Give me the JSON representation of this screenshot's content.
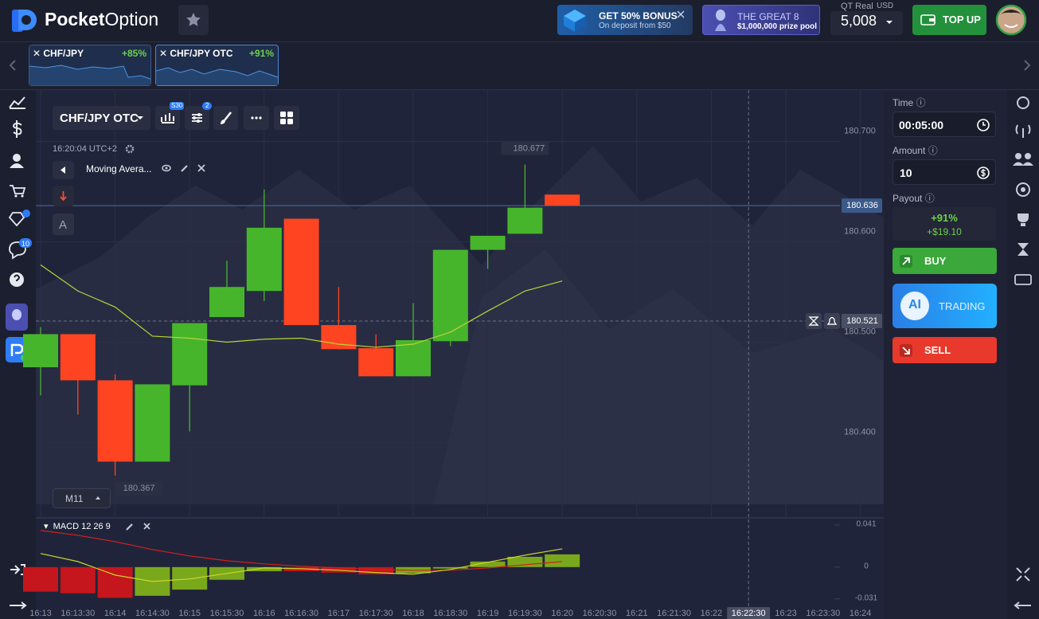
{
  "header": {
    "logo_bold": "Pocket",
    "logo_light": "Option",
    "bonus_title": "GET 50% BONUS",
    "bonus_sub": "On deposit from $50",
    "promo_title": "THE GREAT 8",
    "promo_sub": "$1,000,000 prize pool",
    "account_type": "QT Real",
    "currency": "USD",
    "balance": "5,008",
    "top_up": "TOP UP"
  },
  "tabs": [
    {
      "asset": "CHF/JPY",
      "payout": "+85%"
    },
    {
      "asset": "CHF/JPY OTC",
      "payout": "+91%"
    }
  ],
  "sidebar": {
    "notifications": "10"
  },
  "chart_data": {
    "type": "candlestick",
    "title": "CHF/JPY OTC",
    "timeframe_badge": "S30",
    "indicator_badge": "2",
    "clock": "16:20:04 UTC+2",
    "indicator_name": "Moving Avera...",
    "text_tool": "A",
    "timeframe": "M11",
    "x": [
      "16:13",
      "16:13:30",
      "16:14",
      "16:14:30",
      "16:15",
      "16:15:30",
      "16:16",
      "16:16:30",
      "16:17",
      "16:17:30",
      "16:18",
      "16:18:30",
      "16:19",
      "16:19:30",
      "16:20",
      "16:20:30",
      "16:21",
      "16:21:30",
      "16:22",
      "16:22:30",
      "16:23",
      "16:23:30",
      "16:24"
    ],
    "open": [
      180.475,
      180.508,
      180.462,
      180.381,
      180.457,
      180.525,
      180.551,
      180.623,
      180.517,
      180.494,
      180.466,
      180.501,
      180.592,
      180.608,
      180.647,
      null,
      null,
      null,
      null,
      null,
      null,
      null,
      null
    ],
    "high": [
      180.515,
      180.508,
      180.468,
      180.458,
      180.519,
      180.581,
      180.652,
      180.623,
      180.555,
      180.508,
      180.539,
      180.592,
      180.606,
      180.677,
      180.647,
      null,
      null,
      null,
      null,
      null,
      null,
      null,
      null
    ],
    "low": [
      180.447,
      180.428,
      180.367,
      180.381,
      180.411,
      180.525,
      180.541,
      180.517,
      180.493,
      180.466,
      180.466,
      180.496,
      180.573,
      180.608,
      180.636,
      null,
      null,
      null,
      null,
      null,
      null,
      null,
      null
    ],
    "close": [
      180.508,
      180.462,
      180.381,
      180.458,
      180.519,
      180.555,
      180.614,
      180.517,
      180.493,
      180.466,
      180.502,
      180.592,
      180.606,
      180.634,
      180.636,
      null,
      null,
      null,
      null,
      null,
      null,
      null,
      null
    ],
    "rising_color": "#47b52c",
    "falling_color": "#ff4422",
    "ylim": [
      180.325,
      180.752
    ],
    "yticks": [
      {
        "value": 180.7,
        "label": "180.700"
      },
      {
        "value": 180.6,
        "label": "180.600"
      },
      {
        "value": 180.5,
        "label": "180.500"
      },
      {
        "value": 180.4,
        "label": "180.400"
      }
    ],
    "moving_average": {
      "color": "#b9d437",
      "values": [
        180.577,
        180.551,
        180.535,
        180.506,
        180.504,
        180.5,
        180.503,
        180.504,
        180.498,
        180.495,
        180.498,
        180.51,
        180.531,
        180.551,
        180.561,
        null,
        null,
        null,
        null,
        null,
        null,
        null,
        null
      ]
    },
    "current_price": 180.636,
    "crosshair_price": 180.521,
    "macd": {
      "name": "MACD 12 26 9",
      "ylim": [
        -0.039,
        0.0465
      ],
      "yticks": [
        0.041,
        0,
        -0.031
      ],
      "rising_color": "#7aa81c",
      "falling_color": "#c4161c",
      "histogram": [
        -0.024,
        -0.0256,
        -0.03,
        -0.028,
        -0.022,
        -0.0124,
        -0.004,
        -0.004,
        -0.0054,
        -0.007,
        -0.006,
        -0.0015,
        0.0054,
        0.01,
        0.0124,
        null,
        null,
        null,
        null,
        null,
        null,
        null,
        null
      ],
      "macd_line": {
        "color": "#cbd52a",
        "values": [
          0.0132,
          0.0054,
          -0.0078,
          -0.014,
          -0.0116,
          -0.0062,
          -0.0008,
          -0.0016,
          -0.0031,
          -0.0054,
          -0.007,
          -0.0023,
          0.0047,
          0.0116,
          0.0178,
          null,
          null,
          null,
          null,
          null,
          null,
          null,
          null
        ]
      },
      "signal_line": {
        "color": "#d42020",
        "values": [
          0.0357,
          0.031,
          0.0248,
          0.0171,
          0.0109,
          0.0062,
          0.0031,
          0.0008,
          -0.0008,
          -0.0023,
          -0.0031,
          -0.0031,
          -0.0008,
          0.0023,
          0.0054,
          null,
          null,
          null,
          null,
          null,
          null,
          null,
          null
        ]
      }
    }
  },
  "trade_panel": {
    "time_label": "Time",
    "time": "00:05:00",
    "amount_label": "Amount",
    "amount": "10",
    "payout_label": "Payout",
    "payout_percent": "+91%",
    "payout_amount": "+$19.10",
    "buy": "BUY",
    "ai_badge": "AI",
    "ai_label": "TRADING",
    "sell": "SELL"
  }
}
